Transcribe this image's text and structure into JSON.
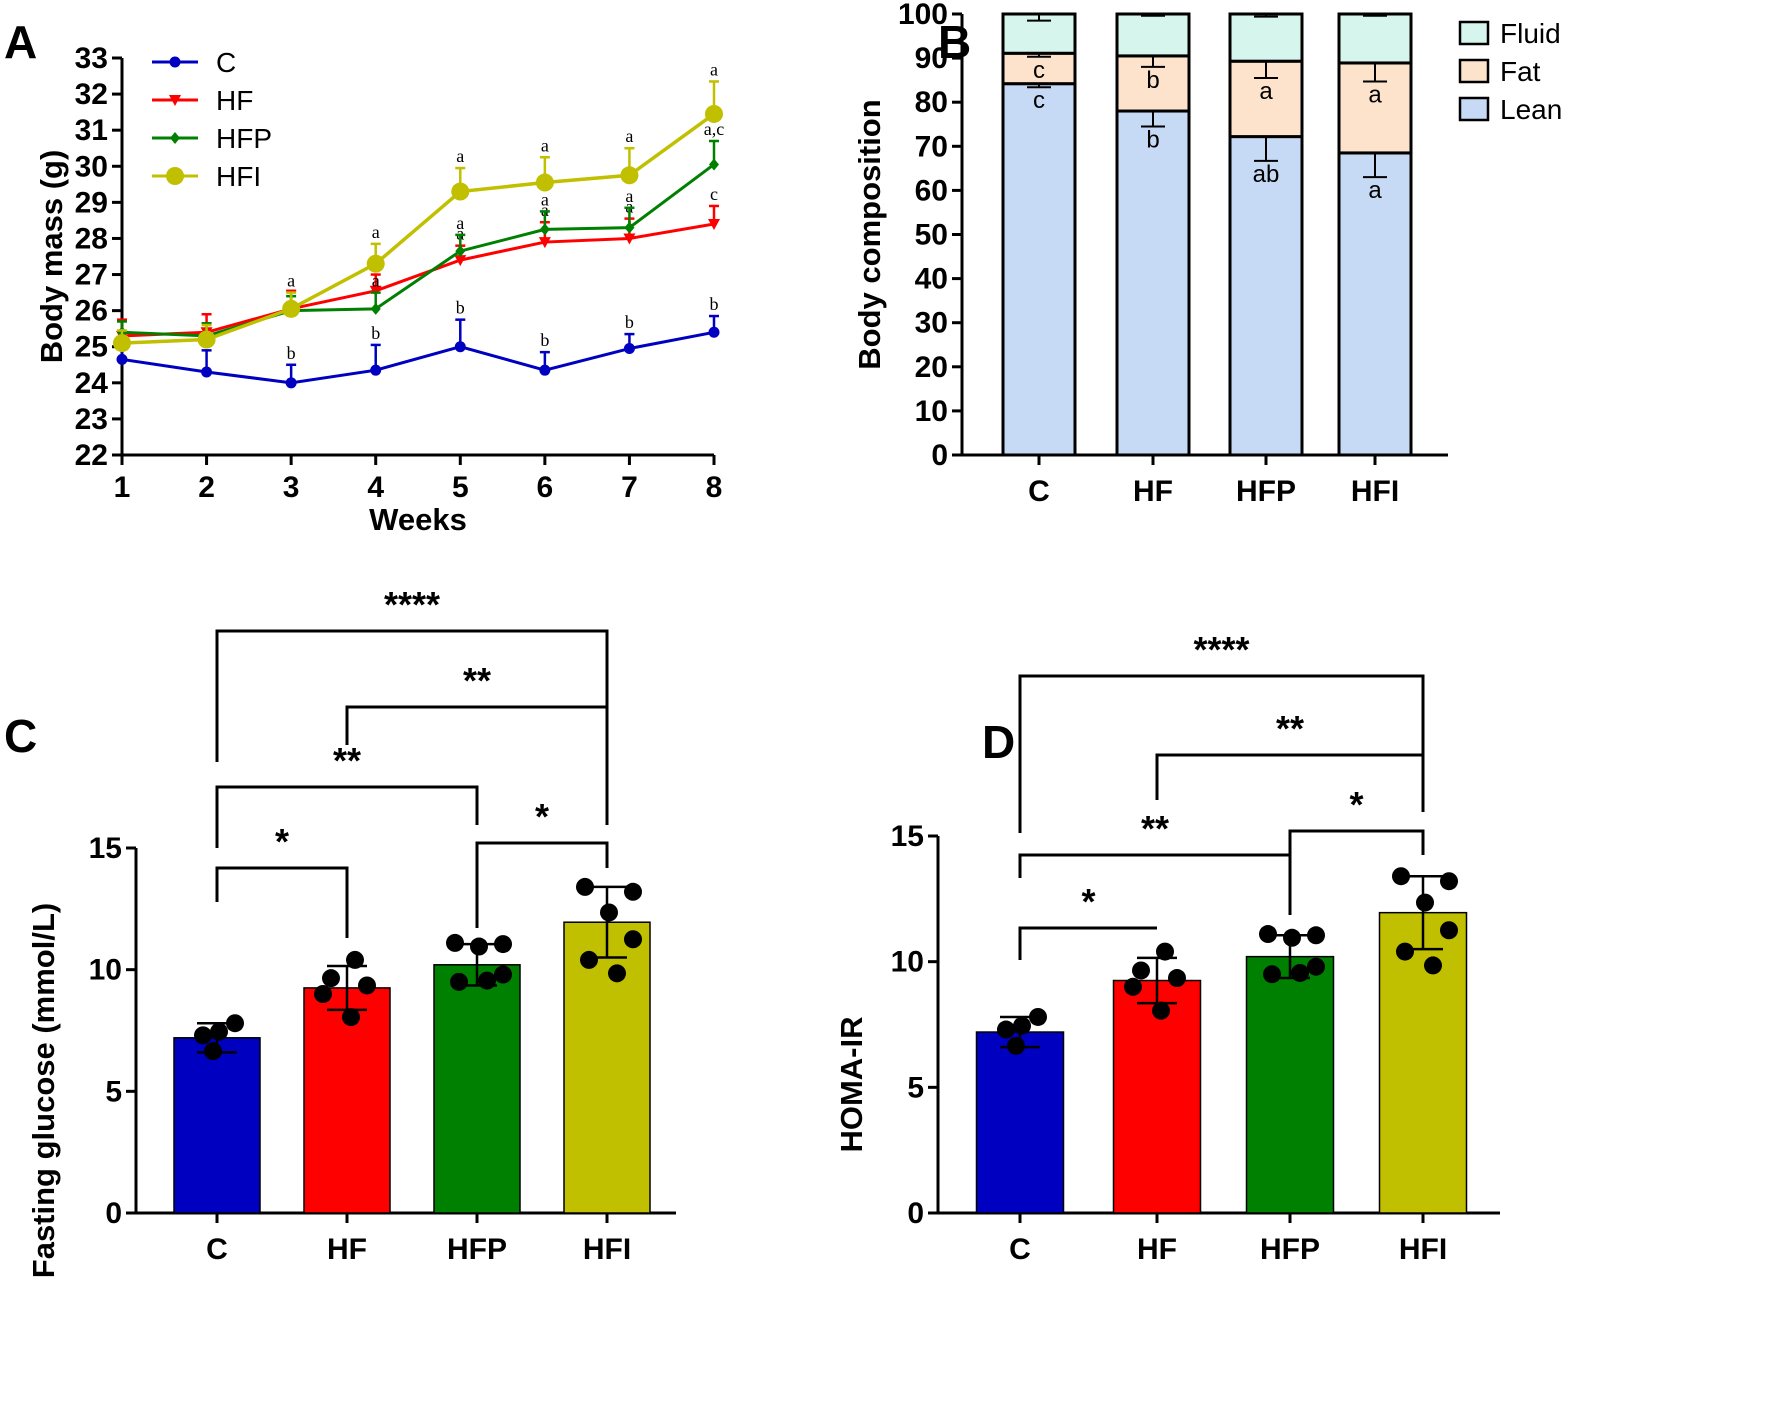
{
  "panels": {
    "A": {
      "label": "A"
    },
    "B": {
      "label": "B"
    },
    "C": {
      "label": "C"
    },
    "D": {
      "label": "D"
    }
  },
  "colors": {
    "C": "#0000c0",
    "HF": "#ff0000",
    "HFP": "#008000",
    "HFI": "#c0c000",
    "fluid": "#d6f5ec",
    "fat": "#fde3cc",
    "lean": "#c6daf5"
  },
  "chart_data": [
    {
      "id": "A",
      "type": "line",
      "title": "",
      "xlabel": "Weeks",
      "ylabel": "Body mass (g)",
      "x": [
        1,
        2,
        3,
        4,
        5,
        6,
        7,
        8
      ],
      "xlim": [
        1,
        8
      ],
      "ylim": [
        22,
        33
      ],
      "yticks": [
        22,
        23,
        24,
        25,
        26,
        27,
        28,
        29,
        30,
        31,
        32,
        33
      ],
      "legend_position": "top-left",
      "series": [
        {
          "name": "C",
          "marker": "circle",
          "values": [
            24.65,
            24.3,
            24.0,
            24.35,
            25.0,
            24.35,
            24.95,
            25.4
          ],
          "sd": [
            0.35,
            0.6,
            0.5,
            0.7,
            0.75,
            0.5,
            0.4,
            0.45
          ],
          "letters": [
            "",
            "",
            "b",
            "b",
            "b",
            "b",
            "b",
            "b"
          ]
        },
        {
          "name": "HF",
          "marker": "triangle-down",
          "values": [
            25.3,
            25.4,
            26.05,
            26.55,
            27.4,
            27.9,
            28.0,
            28.4
          ],
          "sd": [
            0.45,
            0.5,
            0.5,
            0.45,
            0.4,
            0.55,
            0.55,
            0.5
          ],
          "letters": [
            "",
            "",
            "",
            "a",
            "a",
            "a",
            "a",
            "c"
          ]
        },
        {
          "name": "HFP",
          "marker": "diamond",
          "values": [
            25.4,
            25.3,
            26.0,
            26.05,
            27.65,
            28.25,
            28.3,
            30.05
          ],
          "sd": [
            0.3,
            0.35,
            0.4,
            0.45,
            0.45,
            0.5,
            0.55,
            0.65
          ],
          "letters": [
            "",
            "",
            "",
            "a",
            "a",
            "a",
            "a",
            "a,c"
          ]
        },
        {
          "name": "HFI",
          "marker": "big-circle",
          "values": [
            25.1,
            25.2,
            26.05,
            27.3,
            29.3,
            29.55,
            29.75,
            31.45
          ],
          "sd": [
            0.35,
            0.4,
            0.45,
            0.55,
            0.65,
            0.7,
            0.75,
            0.9
          ],
          "letters": [
            "",
            "",
            "a",
            "a",
            "a",
            "a",
            "a",
            "a"
          ]
        }
      ]
    },
    {
      "id": "B",
      "type": "bar",
      "stacked": true,
      "title": "",
      "xlabel": "",
      "ylabel": "Body composition",
      "categories": [
        "C",
        "HF",
        "HFP",
        "HFI"
      ],
      "ylim": [
        0,
        100
      ],
      "yticks": [
        0,
        10,
        20,
        30,
        40,
        50,
        60,
        70,
        80,
        90,
        100
      ],
      "legend_position": "right",
      "series": [
        {
          "name": "Lean",
          "values": [
            84.2,
            78.0,
            72.2,
            68.5
          ],
          "sd": [
            0.8,
            3.5,
            5.5,
            5.5
          ],
          "letters": [
            "c",
            "b",
            "ab",
            "a"
          ]
        },
        {
          "name": "Fat",
          "values": [
            6.9,
            12.5,
            17.1,
            20.4
          ],
          "sd": [
            0.8,
            2.5,
            3.8,
            4.2
          ],
          "letters": [
            "c",
            "b",
            "a",
            "a"
          ]
        },
        {
          "name": "Fluid",
          "values": [
            8.9,
            9.5,
            10.7,
            11.1
          ],
          "sd": [
            1.5,
            0.4,
            0.6,
            0.4
          ],
          "letters": [
            "",
            "",
            "",
            ""
          ]
        }
      ]
    },
    {
      "id": "C",
      "type": "bar",
      "title": "",
      "xlabel": "",
      "ylabel": "Fasting glucose (mmol/L)",
      "categories": [
        "C",
        "HF",
        "HFP",
        "HFI"
      ],
      "values": [
        7.2,
        9.25,
        10.2,
        11.95
      ],
      "sd": [
        0.6,
        0.9,
        0.85,
        1.45
      ],
      "points": [
        [
          7.8,
          7.45,
          7.3,
          6.65
        ],
        [
          10.4,
          9.65,
          9.35,
          9.0,
          8.05
        ],
        [
          11.1,
          11.05,
          10.95,
          9.8,
          9.5,
          9.55
        ],
        [
          13.4,
          13.2,
          12.35,
          11.25,
          10.4,
          9.85
        ]
      ],
      "ylim": [
        0,
        15
      ],
      "yticks": [
        0,
        5,
        10,
        15
      ],
      "comparisons": [
        {
          "from": "C",
          "to": "HF",
          "label": "*"
        },
        {
          "from": "HFP",
          "to": "HFI",
          "label": "*"
        },
        {
          "from": "C",
          "to": "HFP",
          "label": "**"
        },
        {
          "from": "HF",
          "to": "HFI",
          "label": "**"
        },
        {
          "from": "C",
          "to": "HFI",
          "label": "****"
        }
      ]
    },
    {
      "id": "D",
      "type": "bar",
      "title": "",
      "xlabel": "",
      "ylabel": "HOMA-IR",
      "categories": [
        "C",
        "HF",
        "HFP",
        "HFI"
      ],
      "values": [
        7.2,
        9.25,
        10.2,
        11.95
      ],
      "sd": [
        0.6,
        0.9,
        0.85,
        1.45
      ],
      "points": [
        [
          7.8,
          7.45,
          7.3,
          6.65
        ],
        [
          10.4,
          9.65,
          9.35,
          9.0,
          8.05
        ],
        [
          11.1,
          11.05,
          10.95,
          9.8,
          9.5,
          9.55
        ],
        [
          13.4,
          13.2,
          12.35,
          11.25,
          10.4,
          9.85
        ]
      ],
      "ylim": [
        0,
        15
      ],
      "yticks": [
        0,
        5,
        10,
        15
      ],
      "comparisons": [
        {
          "from": "C",
          "to": "HF",
          "label": "*"
        },
        {
          "from": "HFP",
          "to": "HFI",
          "label": "*"
        },
        {
          "from": "C",
          "to": "HFP",
          "label": "**"
        },
        {
          "from": "HF",
          "to": "HFI",
          "label": "**"
        },
        {
          "from": "C",
          "to": "HFI",
          "label": "****"
        }
      ]
    }
  ]
}
